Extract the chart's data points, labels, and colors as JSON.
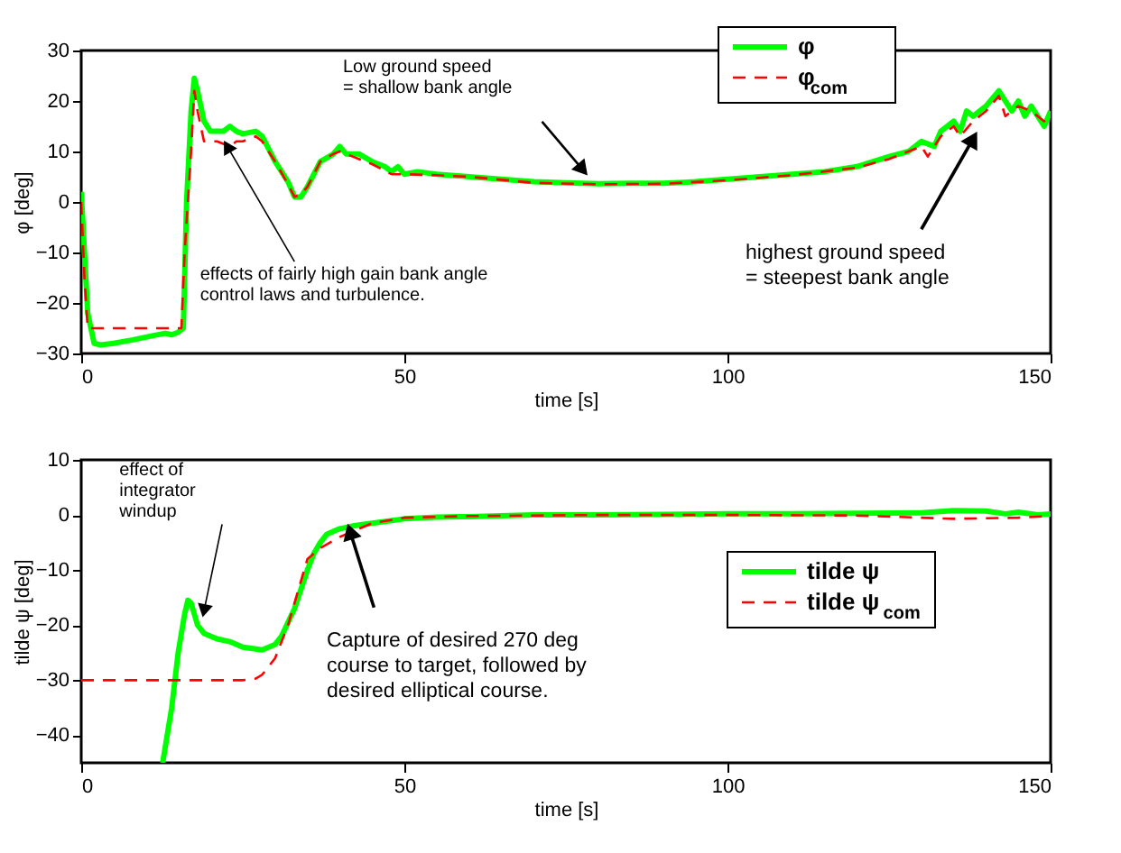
{
  "chart_data": [
    {
      "type": "line",
      "xlabel": "time [s]",
      "ylabel": "φ [deg]",
      "xlim": [
        0,
        150
      ],
      "xticks": [
        0,
        50,
        100,
        150
      ],
      "ylim": [
        -30,
        30
      ],
      "yticks": [
        -30,
        -20,
        -10,
        0,
        10,
        20,
        30
      ],
      "grid": false,
      "legend": "top",
      "series": [
        {
          "name": "φ",
          "color": "#00ff00",
          "line_style": "solid",
          "x": [
            0,
            0.5,
            1,
            2,
            3,
            5,
            8,
            11,
            13,
            14,
            15,
            15.8,
            16.3,
            17,
            17.5,
            18,
            19,
            20,
            22,
            23,
            24,
            25,
            27,
            28,
            30,
            32,
            33,
            34,
            35,
            37,
            39,
            40,
            41,
            43,
            45,
            47,
            48,
            49,
            50,
            52,
            55,
            60,
            65,
            70,
            75,
            80,
            85,
            90,
            95,
            100,
            105,
            110,
            115,
            120,
            125,
            128,
            130,
            132,
            133,
            135,
            136,
            137,
            138,
            140,
            142,
            144,
            145,
            146,
            147,
            149,
            150
          ],
          "values": [
            2,
            -10,
            -22,
            -28,
            -28.3,
            -28,
            -27.3,
            -26.5,
            -26,
            -26.3,
            -25.8,
            -25,
            0,
            18,
            24.5,
            22,
            16,
            14,
            14,
            15,
            14,
            13.5,
            14,
            13,
            8,
            4,
            1,
            1,
            3,
            8,
            9.5,
            11,
            9.5,
            9.5,
            8,
            7,
            6,
            7,
            5.5,
            6,
            5.5,
            5,
            4.5,
            4,
            3.8,
            3.6,
            3.7,
            3.7,
            4,
            4.5,
            5,
            5.5,
            6,
            7,
            9,
            10,
            12,
            11,
            14,
            16,
            14,
            18,
            17,
            19,
            22,
            18,
            20,
            17,
            19,
            15,
            18
          ]
        },
        {
          "name": "φ$_{com}$",
          "color": "#ff0000",
          "line_style": "dashed",
          "x": [
            0,
            0.5,
            1,
            15.5,
            16,
            17,
            17.5,
            18,
            19,
            21,
            23,
            24,
            25,
            27,
            28,
            30,
            32,
            33,
            34,
            35,
            37,
            39,
            40,
            42,
            45,
            48,
            50,
            55,
            60,
            70,
            80,
            90,
            100,
            110,
            120,
            125,
            130,
            131,
            133,
            135,
            136,
            138,
            140,
            142,
            143,
            145,
            147,
            149,
            150
          ],
          "values": [
            0,
            -15,
            -25,
            -25,
            -10,
            10,
            22,
            18,
            12,
            12,
            11,
            12,
            12,
            13,
            12,
            8,
            3.5,
            1,
            1.5,
            3,
            8,
            9.5,
            10,
            9,
            7.5,
            5.5,
            5.5,
            5.3,
            5,
            3.8,
            3.5,
            3.6,
            4.3,
            5.3,
            6.8,
            8.5,
            11,
            9,
            13,
            15,
            13,
            16,
            18,
            21,
            17,
            19,
            18,
            16,
            17
          ]
        }
      ],
      "annotations": [
        "Low ground speed\n= shallow bank angle",
        {
          "text": "effects of fairly high gain bank angle\ncontrol laws and turbulence.",
          "x": 22.6,
          "y": 11
        },
        "highest ground speed\n= steepest bank angle"
      ]
    },
    {
      "type": "line",
      "xlabel": "time [s]",
      "ylabel": "tilde ψ [deg]",
      "xlim": [
        0,
        150
      ],
      "xticks": [
        0,
        50,
        100,
        150
      ],
      "ylim": [
        -45,
        10
      ],
      "yticks": [
        -40,
        -30,
        -20,
        -10,
        0,
        10
      ],
      "grid": false,
      "legend": "right",
      "series": [
        {
          "name": "tilde ψ",
          "color": "#00ff00",
          "line_style": "solid",
          "x": [
            12.6,
            14,
            15,
            16,
            16.5,
            17,
            18,
            19,
            21,
            23,
            25,
            28,
            30,
            31,
            33,
            35,
            36,
            37,
            38,
            40,
            42,
            45,
            50,
            55,
            60,
            70,
            80,
            90,
            100,
            110,
            120,
            130,
            135,
            140,
            143,
            145,
            148,
            150
          ],
          "values": [
            -45,
            -35,
            -25,
            -18,
            -15.5,
            -16,
            -20,
            -21.5,
            -22.5,
            -23,
            -24,
            -24.5,
            -23.5,
            -22,
            -17,
            -10,
            -7,
            -5,
            -3.5,
            -2.5,
            -2,
            -1.5,
            -0.7,
            -0.4,
            -0.3,
            0,
            0,
            0.1,
            0.2,
            0.2,
            0.3,
            0.4,
            0.8,
            0.7,
            0.2,
            0.5,
            0,
            0.2
          ]
        },
        {
          "name": "tilde ψ$_{com}$",
          "color": "#ff0000",
          "line_style": "dashed",
          "x": [
            0,
            25,
            27,
            28,
            30,
            32,
            34,
            35,
            37,
            40,
            43,
            45,
            50,
            60,
            80,
            100,
            120,
            130,
            135,
            140,
            145,
            150
          ],
          "values": [
            -30,
            -30,
            -29.7,
            -29,
            -26,
            -20,
            -12,
            -8,
            -6,
            -4,
            -2.5,
            -1.5,
            -0.5,
            -0.2,
            0,
            0,
            -0.1,
            -0.5,
            -0.7,
            -0.6,
            -0.5,
            -0.2
          ]
        }
      ],
      "annotations": [
        "effect of\nintegrator\nwindup",
        {
          "text": "Capture of desired 270 deg\ncourse to target, followed by\ndesired elliptical course.",
          "x": 41.6,
          "y": -3
        }
      ]
    }
  ]
}
